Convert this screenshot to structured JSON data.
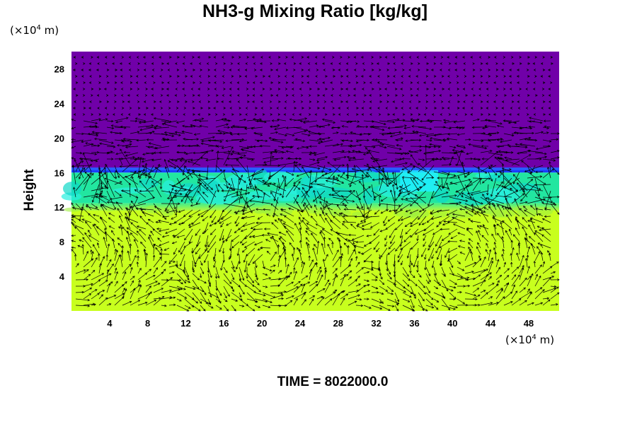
{
  "header": {
    "title": "NH3-g Mixing Ratio [kg/kg]",
    "y_unit_prefix": "(×10",
    "y_unit_exp": "4",
    "y_unit_suffix": " m)",
    "x_unit_prefix": "(×10",
    "x_unit_exp": "4",
    "x_unit_suffix": " m)",
    "ylabel": "Height",
    "time_label": "TIME = 8022000.0"
  },
  "chart_data": {
    "type": "heatmap",
    "title": "NH3-g Mixing Ratio [kg/kg]",
    "xlabel": "",
    "ylabel": "Height",
    "xlim": [
      0,
      51.2
    ],
    "ylim": [
      0,
      30
    ],
    "x_ticks": [
      4,
      8,
      12,
      16,
      20,
      24,
      28,
      32,
      36,
      40,
      44,
      48
    ],
    "y_ticks": [
      4,
      8,
      12,
      16,
      20,
      24,
      28
    ],
    "layers": [
      {
        "name": "upper",
        "y_from": 16.5,
        "y_to": 30,
        "color": "#7000a8"
      },
      {
        "name": "transition",
        "y_from": 16.0,
        "y_to": 16.5,
        "color": "#1a3cff"
      },
      {
        "name": "mid",
        "y_from": 12.5,
        "y_to": 16.0,
        "color": "#22e6a0"
      },
      {
        "name": "lower",
        "y_from": 0,
        "y_to": 12.0,
        "color": "#c8ff1e"
      }
    ],
    "vectors": "wind vector overlay",
    "grid": false,
    "legend": "none"
  }
}
